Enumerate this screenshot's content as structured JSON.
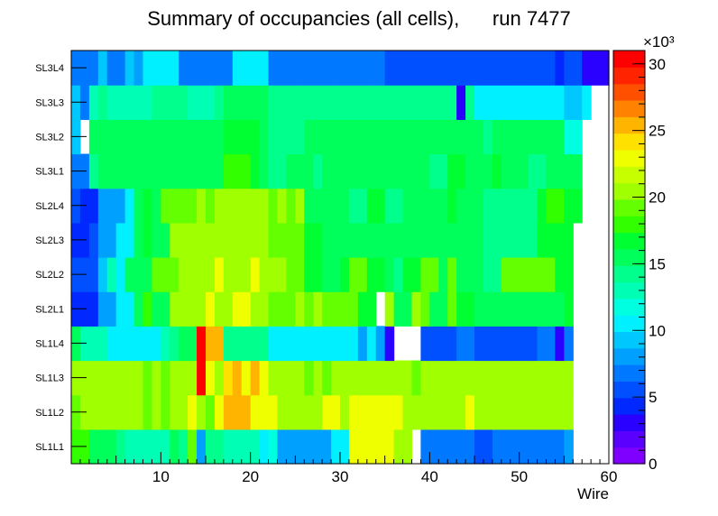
{
  "chart_data": {
    "type": "heatmap",
    "title": "Summary of occupancies (all cells),      run 7477",
    "xlabel": "Wire",
    "ylabel": "",
    "xlim": [
      0,
      60
    ],
    "x_ticks": [
      "10",
      "20",
      "30",
      "40",
      "50",
      "60"
    ],
    "x_tick_values": [
      10,
      20,
      30,
      40,
      50,
      60
    ],
    "layers": [
      "SL1L1",
      "SL1L2",
      "SL1L3",
      "SL1L4",
      "SL2L1",
      "SL2L2",
      "SL2L3",
      "SL2L4",
      "SL3L1",
      "SL3L2",
      "SL3L3",
      "SL3L4"
    ],
    "z_scale_label": "×10³",
    "z_range": [
      0,
      31000
    ],
    "z_ticks": [
      "0",
      "5",
      "10",
      "15",
      "20",
      "25",
      "30"
    ],
    "z_tick_values": [
      0,
      5,
      10,
      15,
      20,
      25,
      30
    ],
    "palette": [
      "#7f00ff",
      "#5a00ff",
      "#2a00ff",
      "#0028ff",
      "#0050ff",
      "#0078ff",
      "#00a0ff",
      "#00c8ff",
      "#00f0ff",
      "#00ffe0",
      "#00ffb4",
      "#00ff8c",
      "#00ff5a",
      "#00ff32",
      "#32ff00",
      "#64ff00",
      "#a0ff00",
      "#c8ff00",
      "#f0ff00",
      "#ffe100",
      "#ffb400",
      "#ff8200",
      "#ff5000",
      "#ff2300",
      "#ff0000"
    ],
    "values_x1000": [
      [
        17.5,
        17.5,
        16,
        15,
        16,
        14,
        13,
        13,
        13,
        13,
        13,
        16,
        14,
        19,
        8,
        14,
        14,
        13,
        13,
        13,
        13,
        11,
        12,
        8,
        8,
        8,
        8,
        8,
        8,
        11,
        11,
        23,
        23,
        23,
        23,
        23,
        21,
        21,
        0,
        7,
        7,
        7,
        7,
        7,
        7,
        6,
        6,
        7,
        7,
        7,
        7,
        7,
        7,
        7,
        7,
        8,
        0,
        0,
        0,
        0
      ],
      [
        19,
        21,
        21,
        21,
        21,
        21,
        21,
        21,
        19,
        21,
        19,
        21,
        21,
        23,
        21,
        19,
        23,
        26,
        26,
        26,
        23,
        23,
        23,
        21,
        21,
        20,
        21,
        21,
        23,
        23,
        21,
        23,
        23,
        23,
        23,
        23,
        23,
        21,
        21,
        21,
        21,
        21,
        20,
        21,
        23,
        21,
        21,
        21,
        21,
        20,
        21,
        21,
        21,
        21,
        21,
        21,
        0,
        0,
        0,
        0
      ],
      [
        21,
        20,
        20,
        21,
        21,
        21,
        21,
        21,
        19,
        21,
        19,
        21,
        21,
        21,
        30,
        23,
        21,
        24,
        26,
        23,
        26,
        23,
        21,
        21,
        21,
        21,
        19,
        21,
        19,
        21,
        21,
        21,
        21,
        21,
        21,
        21,
        21,
        21,
        19,
        21,
        21,
        21,
        21,
        21,
        21,
        21,
        21,
        21,
        21,
        21,
        21,
        21,
        21,
        21,
        21,
        21,
        0,
        0,
        0,
        0
      ],
      [
        15,
        13,
        13,
        13,
        11,
        11,
        11,
        11,
        11,
        11,
        13,
        14,
        16,
        15,
        30,
        26,
        26,
        14,
        14,
        14,
        14,
        14,
        10,
        10,
        10,
        10,
        10,
        10,
        10,
        10,
        10,
        10,
        8,
        11,
        8,
        3,
        0,
        0,
        0,
        6,
        6,
        6,
        6,
        7,
        7,
        6,
        6,
        6,
        5,
        5,
        5,
        5,
        7,
        7,
        3,
        7,
        0,
        0,
        0,
        0
      ],
      [
        4,
        4,
        4,
        8,
        8,
        10,
        10,
        16,
        18,
        16,
        16,
        21,
        21,
        21,
        21,
        23,
        21,
        21,
        23,
        23,
        21,
        21,
        19,
        19,
        19,
        21,
        19,
        21,
        19,
        19,
        19,
        19,
        17,
        17,
        0,
        21,
        15,
        15,
        21,
        19,
        16,
        16,
        19,
        17,
        17,
        16,
        16,
        16,
        16,
        16,
        15,
        15,
        15,
        15,
        15,
        17,
        0,
        0,
        0,
        0
      ],
      [
        5,
        6,
        6,
        9,
        13,
        10,
        16,
        16,
        16,
        19,
        19,
        19,
        21,
        21,
        21,
        21,
        23,
        21,
        21,
        21,
        23,
        21,
        21,
        21,
        19,
        19,
        17,
        17,
        16,
        16,
        17,
        19,
        19,
        17,
        17,
        16,
        14,
        17,
        17,
        19,
        19,
        16,
        19,
        16,
        16,
        16,
        14,
        14,
        19,
        19,
        19,
        19,
        19,
        19,
        17,
        17,
        0,
        0,
        0,
        0
      ],
      [
        4,
        4,
        6,
        8,
        8,
        10,
        10,
        16,
        17,
        16,
        16,
        21,
        21,
        21,
        21,
        21,
        21,
        21,
        21,
        21,
        21,
        21,
        19,
        19,
        19,
        19,
        17,
        17,
        16,
        16,
        16,
        16,
        16,
        16,
        16,
        16,
        16,
        16,
        16,
        16,
        16,
        16,
        16,
        16,
        16,
        16,
        14,
        14,
        14,
        14,
        14,
        14,
        17,
        17,
        17,
        17,
        0,
        0,
        0,
        0
      ],
      [
        6,
        4,
        4,
        8,
        8,
        8,
        10,
        16,
        17,
        16,
        19,
        19,
        19,
        19,
        21,
        19,
        21,
        21,
        21,
        21,
        21,
        21,
        19,
        21,
        19,
        21,
        16,
        16,
        16,
        16,
        16,
        14,
        14,
        17,
        17,
        14,
        14,
        16,
        16,
        16,
        16,
        16,
        17,
        16,
        16,
        16,
        14,
        14,
        14,
        14,
        14,
        14,
        17,
        18,
        18,
        17,
        17,
        0,
        0,
        0
      ],
      [
        7,
        7,
        14,
        15,
        15,
        16,
        16,
        16,
        16,
        15,
        15,
        16,
        15,
        16,
        16,
        16,
        16,
        18,
        18,
        18,
        17,
        15,
        14,
        14,
        15,
        15,
        16,
        14,
        16,
        16,
        15,
        15,
        16,
        16,
        15,
        15,
        16,
        15,
        16,
        16,
        14,
        14,
        17,
        17,
        15,
        15,
        15,
        17,
        16,
        16,
        16,
        14,
        14,
        16,
        16,
        16,
        16,
        0,
        0,
        0
      ],
      [
        9,
        0,
        15,
        15,
        15,
        15,
        15,
        16,
        16,
        15,
        15,
        16,
        16,
        16,
        16,
        15,
        16,
        17,
        17,
        17,
        17,
        16,
        14,
        14,
        14,
        14,
        15,
        16,
        16,
        16,
        15,
        15,
        16,
        16,
        15,
        15,
        15,
        15,
        15,
        15,
        15,
        15,
        15,
        16,
        16,
        16,
        14,
        15,
        15,
        15,
        15,
        15,
        16,
        16,
        15,
        12,
        12,
        0,
        0,
        0
      ],
      [
        9,
        7,
        13,
        14,
        13,
        13,
        13,
        13,
        13,
        14,
        14,
        14,
        14,
        13,
        13,
        13,
        14,
        16,
        16,
        16,
        16,
        15,
        14,
        14,
        14,
        14,
        14,
        14,
        14,
        14,
        14,
        14,
        14,
        14,
        14,
        14,
        14,
        14,
        14,
        14,
        14,
        14,
        14,
        3,
        14,
        11,
        11,
        11,
        11,
        11,
        11,
        11,
        11,
        11,
        11,
        9,
        9,
        11,
        0,
        0
      ],
      [
        7,
        7,
        7,
        9,
        7,
        7,
        9,
        8,
        11,
        11,
        11,
        11,
        7,
        7,
        7,
        7,
        7,
        7,
        10,
        10,
        10,
        10,
        7,
        7,
        7,
        7,
        7,
        7,
        7,
        7,
        7,
        7,
        7,
        7,
        7,
        5,
        5,
        5,
        5,
        5,
        5,
        5,
        5,
        5,
        5,
        5,
        5,
        5,
        5,
        5,
        5,
        5,
        5,
        5,
        4,
        5,
        5,
        3,
        3,
        3
      ]
    ]
  }
}
